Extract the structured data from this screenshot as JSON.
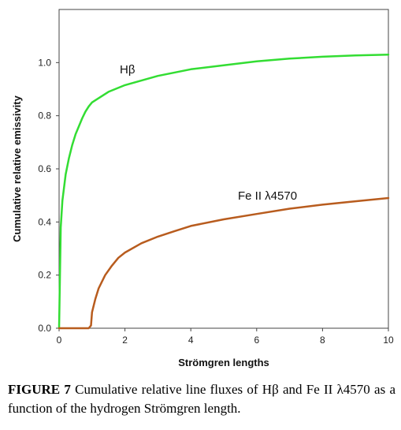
{
  "chart_data": {
    "type": "line",
    "xlabel": "Strömgren lengths",
    "ylabel": "Cumulative relative emissivity",
    "xlim": [
      0,
      10
    ],
    "ylim": [
      0,
      1.2
    ],
    "x_ticks": [
      0,
      2,
      4,
      6,
      8,
      10
    ],
    "y_ticks": [
      0.0,
      0.2,
      0.4,
      0.6,
      0.8,
      1.0
    ],
    "x_tick_labels": [
      "0",
      "2",
      "4",
      "6",
      "8",
      "10"
    ],
    "y_tick_labels": [
      "0.0",
      "0.2",
      "0.4",
      "0.6",
      "0.8",
      "1.0"
    ],
    "grid": false,
    "series": [
      {
        "name": "Hβ",
        "color": "#33dd33",
        "x": [
          0,
          0.05,
          0.1,
          0.2,
          0.3,
          0.4,
          0.5,
          0.6,
          0.7,
          0.8,
          0.9,
          1.0,
          1.5,
          2,
          3,
          4,
          5,
          6,
          7,
          8,
          9,
          10
        ],
        "y": [
          0,
          0.38,
          0.48,
          0.58,
          0.64,
          0.69,
          0.73,
          0.76,
          0.79,
          0.815,
          0.835,
          0.85,
          0.89,
          0.915,
          0.95,
          0.975,
          0.99,
          1.005,
          1.015,
          1.022,
          1.027,
          1.03
        ]
      },
      {
        "name": "Fe II λ4570",
        "color": "#b85c1e",
        "x": [
          0,
          0.9,
          0.97,
          1.0,
          1.1,
          1.2,
          1.4,
          1.6,
          1.8,
          2,
          2.5,
          3,
          3.5,
          4,
          5,
          6,
          7,
          8,
          9,
          10
        ],
        "y": [
          0,
          0,
          0.01,
          0.06,
          0.11,
          0.15,
          0.2,
          0.235,
          0.265,
          0.285,
          0.32,
          0.345,
          0.365,
          0.385,
          0.41,
          0.43,
          0.45,
          0.465,
          0.478,
          0.49
        ]
      }
    ]
  },
  "caption": {
    "figure_label": "FIGURE 7",
    "text": "Cumulative relative line fluxes of Hβ and Fe II λ4570 as a function of the hydrogen Strömgren length."
  }
}
